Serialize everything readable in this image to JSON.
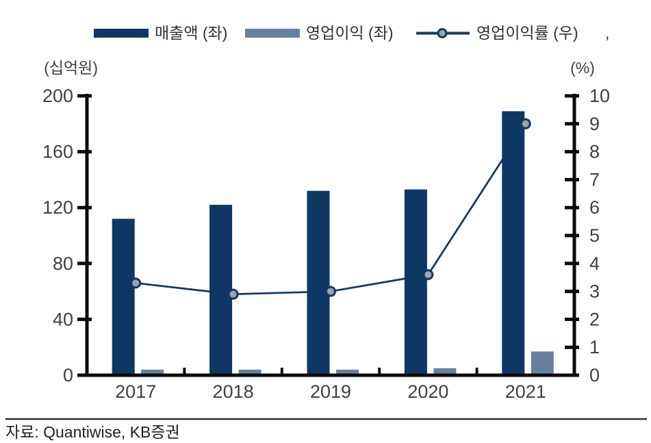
{
  "chart_data": {
    "type": "bar+line",
    "title": "",
    "categories": [
      "2017",
      "2018",
      "2019",
      "2020",
      "2021"
    ],
    "series": [
      {
        "name": "매출액 (좌)",
        "type": "bar",
        "axis": "left",
        "color": "#0e3863",
        "values": [
          112,
          122,
          132,
          133,
          189
        ]
      },
      {
        "name": "영업이익 (좌)",
        "type": "bar",
        "axis": "left",
        "color": "#697f9f",
        "values": [
          4,
          4,
          4,
          5,
          17
        ]
      },
      {
        "name": "영업이익률 (우)",
        "type": "line",
        "axis": "right",
        "color": "#16395f",
        "marker_fill": "#9aa5b5",
        "values": [
          3.3,
          2.9,
          3.0,
          3.6,
          9.0
        ]
      }
    ],
    "left_axis": {
      "label": "(십억원)",
      "min": 0,
      "max": 200,
      "ticks": [
        0,
        40,
        80,
        120,
        160,
        200
      ]
    },
    "right_axis": {
      "label": "(%)",
      "min": 0,
      "max": 10,
      "ticks": [
        0,
        1,
        2,
        3,
        4,
        5,
        6,
        7,
        8,
        9,
        10
      ]
    },
    "grid": false,
    "legend_position": "top",
    "legend_trailing_text": ",",
    "axis_color": "#0b0b0b"
  },
  "footer": {
    "source": "자료: Quantiwise, KB증권"
  }
}
